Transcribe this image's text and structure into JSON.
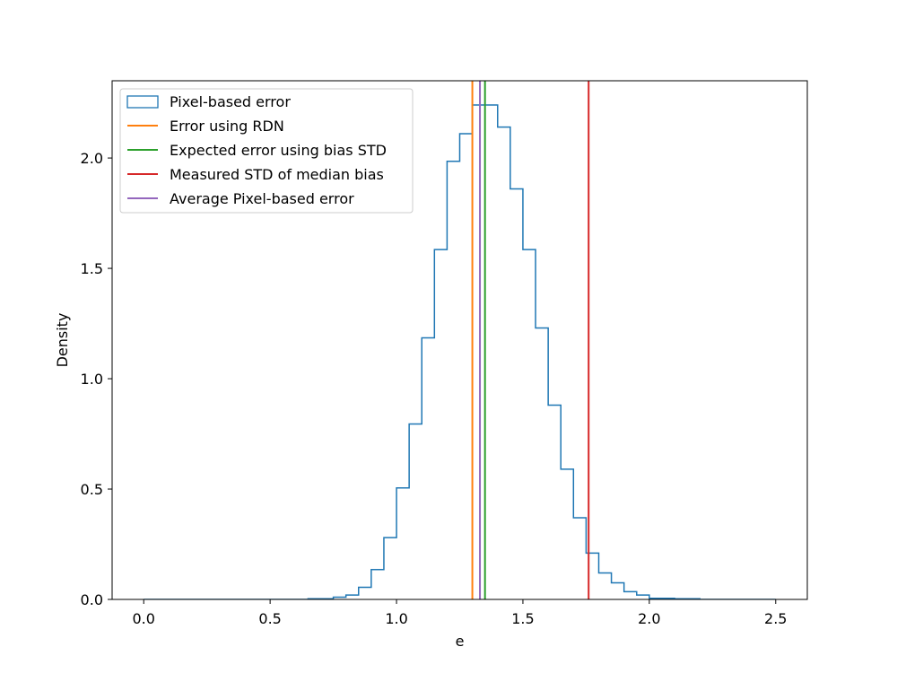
{
  "chart_data": {
    "type": "histogram",
    "title": "",
    "xlabel": "e",
    "ylabel": "Density",
    "xlim": [
      -0.125,
      2.625
    ],
    "ylim": [
      0,
      2.35
    ],
    "xticks": [
      0.0,
      0.5,
      1.0,
      1.5,
      2.0,
      2.5
    ],
    "xtick_labels": [
      "0.0",
      "0.5",
      "1.0",
      "1.5",
      "2.0",
      "2.5"
    ],
    "yticks": [
      0.0,
      0.5,
      1.0,
      1.5,
      2.0
    ],
    "ytick_labels": [
      "0.0",
      "0.5",
      "1.0",
      "1.5",
      "2.0"
    ],
    "grid": false,
    "legend_position": "top-left",
    "histogram": {
      "name": "Pixel-based error",
      "color": "#1f77b4",
      "bin_edges": [
        0.0,
        0.05,
        0.1,
        0.15,
        0.2,
        0.25,
        0.3,
        0.35,
        0.4,
        0.45,
        0.5,
        0.55,
        0.6,
        0.65,
        0.7,
        0.75,
        0.8,
        0.85,
        0.9,
        0.95,
        1.0,
        1.05,
        1.1,
        1.15,
        1.2,
        1.25,
        1.3,
        1.35,
        1.4,
        1.45,
        1.5,
        1.55,
        1.6,
        1.65,
        1.7,
        1.75,
        1.8,
        1.85,
        1.9,
        1.95,
        2.0,
        2.05,
        2.1,
        2.15,
        2.2,
        2.25,
        2.3,
        2.35,
        2.4,
        2.45,
        2.5
      ],
      "densities": [
        0.0,
        0.0,
        0.0,
        0.0,
        0.0,
        0.0,
        0.0,
        0.0,
        0.0,
        0.0,
        0.0,
        0.0,
        0.0,
        0.003,
        0.003,
        0.01,
        0.02,
        0.055,
        0.135,
        0.28,
        0.505,
        0.795,
        1.185,
        1.585,
        1.985,
        2.11,
        2.24,
        2.24,
        2.14,
        1.86,
        1.585,
        1.23,
        0.88,
        0.59,
        0.37,
        0.21,
        0.12,
        0.075,
        0.035,
        0.02,
        0.005,
        0.005,
        0.003,
        0.003,
        0.0,
        0.0,
        0.0,
        0.0,
        0.0,
        0.0
      ]
    },
    "vlines": [
      {
        "name": "Error using RDN",
        "x": 1.3,
        "color": "#ff7f0e"
      },
      {
        "name": "Expected error using bias STD",
        "x": 1.35,
        "color": "#2ca02c"
      },
      {
        "name": "Measured STD of median bias",
        "x": 1.76,
        "color": "#d62728"
      },
      {
        "name": "Average Pixel-based error",
        "x": 1.33,
        "color": "#9467bd"
      }
    ]
  }
}
